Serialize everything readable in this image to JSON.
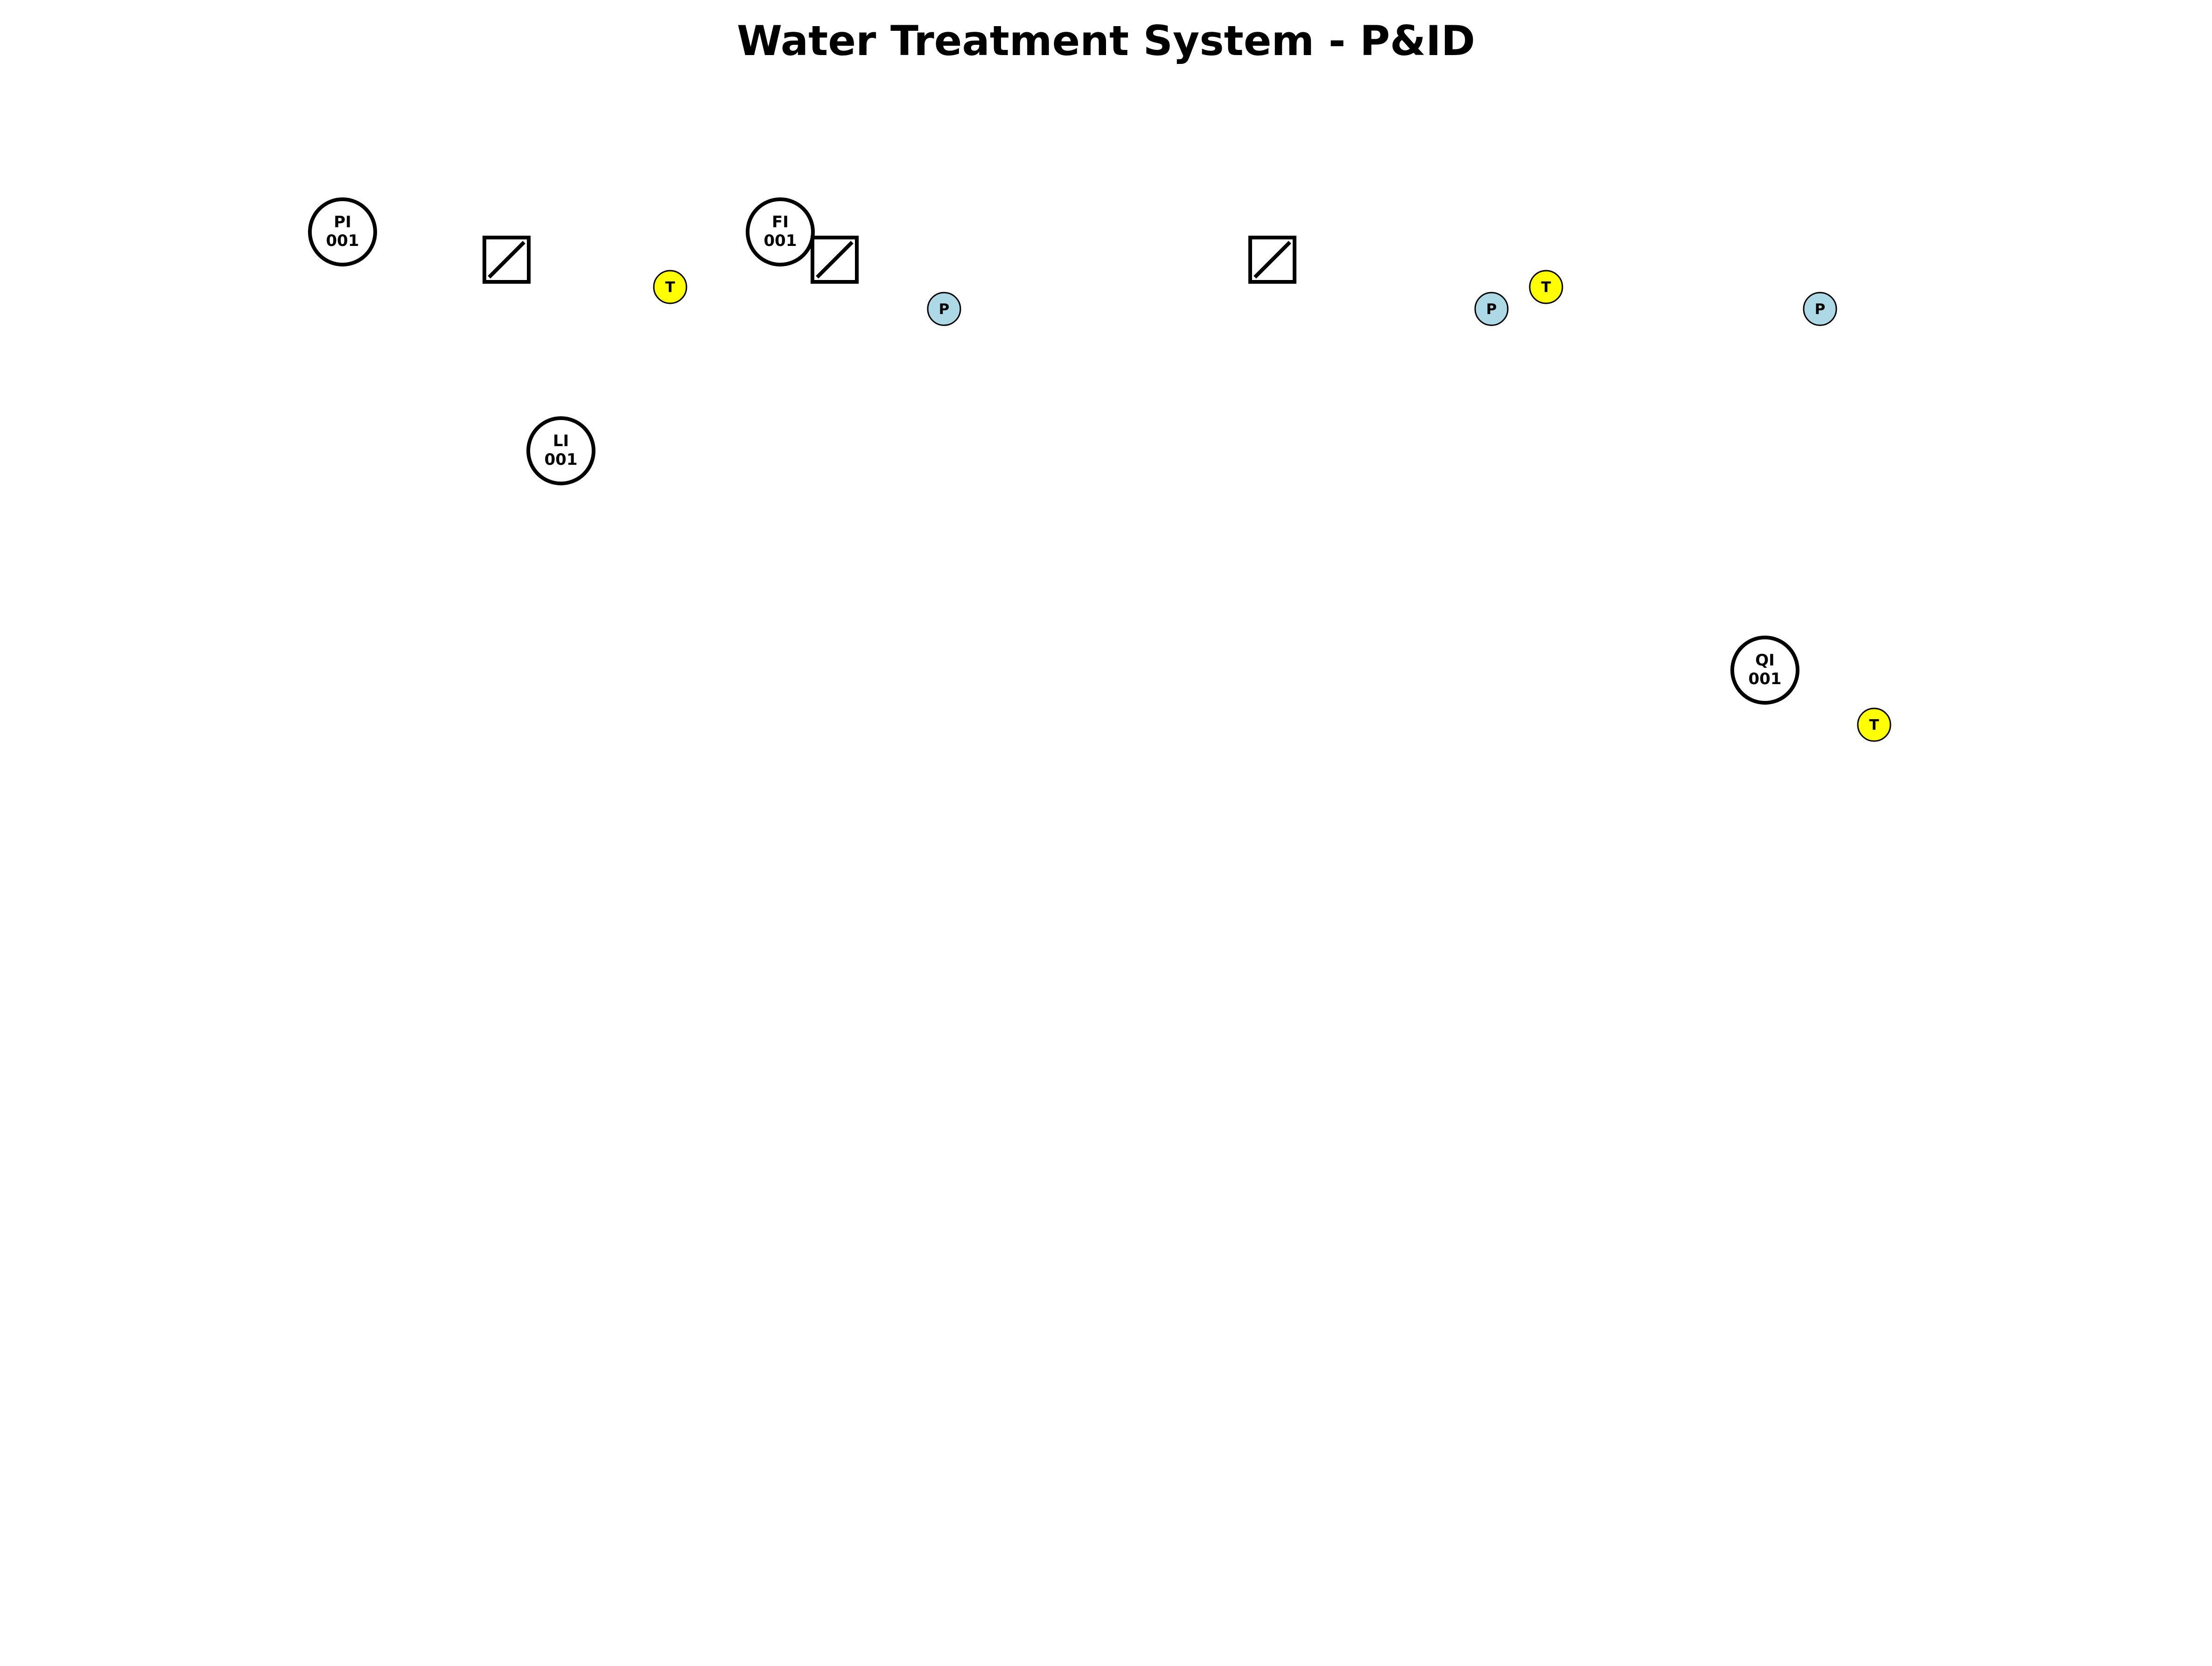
{
  "title": "Water Treatment System - P&ID",
  "colors": {
    "temperature_sensor": "#ffff00",
    "pressure_sensor": "#add8e6",
    "line": "#000000",
    "background": "#ffffff"
  },
  "instruments": [
    {
      "tag": "PI",
      "number": "001"
    },
    {
      "tag": "FI",
      "number": "001"
    },
    {
      "tag": "LI",
      "number": "001"
    },
    {
      "tag": "QI",
      "number": "001"
    }
  ],
  "valves": [
    {
      "icon": "control-valve-icon"
    },
    {
      "icon": "control-valve-icon"
    },
    {
      "icon": "control-valve-icon"
    }
  ],
  "temperature_sensors": [
    {
      "label": "T"
    },
    {
      "label": "T"
    },
    {
      "label": "T"
    }
  ],
  "pressure_sensors": [
    {
      "label": "P"
    },
    {
      "label": "P"
    },
    {
      "label": "P"
    }
  ]
}
